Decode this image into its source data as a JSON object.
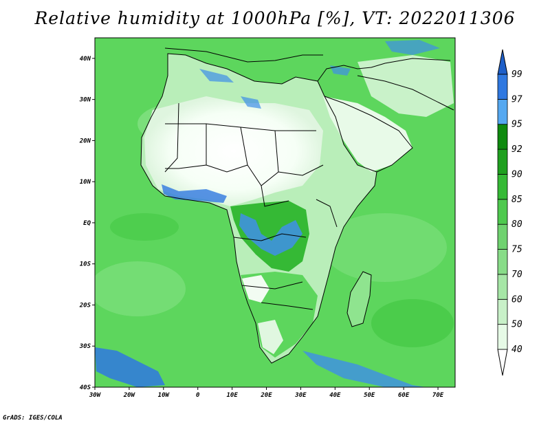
{
  "title": "Relative humidity at 1000hPa [%], VT: 2022011306",
  "credit": "GrADS: IGES/COLA",
  "map": {
    "lat_ticks": [
      "40N",
      "30N",
      "20N",
      "10N",
      "EQ",
      "10S",
      "20S",
      "30S",
      "40S"
    ],
    "lon_ticks": [
      "30W",
      "20W",
      "10W",
      "0",
      "10E",
      "20E",
      "30E",
      "40E",
      "50E",
      "60E",
      "70E"
    ],
    "lon_range": [
      -30,
      75
    ],
    "lat_range": [
      -40,
      45
    ],
    "ocean_color": "#5dd65d"
  },
  "colorbar": {
    "levels": [
      "40",
      "50",
      "60",
      "70",
      "75",
      "80",
      "85",
      "90",
      "92",
      "95",
      "97",
      "99"
    ],
    "colors": [
      "#ffffff",
      "#e6fae6",
      "#c8f0c8",
      "#a6e6a6",
      "#88dc88",
      "#6fd26f",
      "#4ec94e",
      "#35b935",
      "#1fa01f",
      "#0e8a0e",
      "#55a8f0",
      "#2f78e0",
      "#1e5fc8"
    ]
  }
}
